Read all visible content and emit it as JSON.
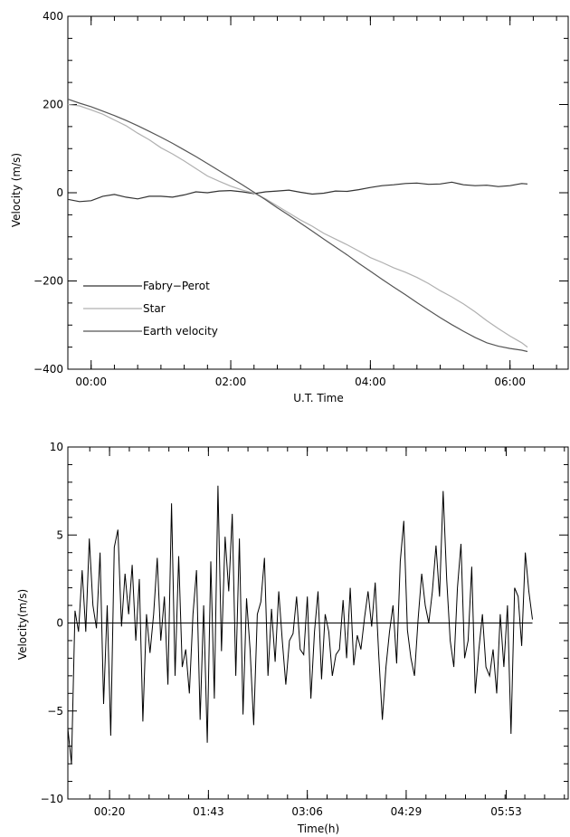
{
  "chart_data": [
    {
      "type": "line",
      "title": "",
      "xlabel": "U.T. Time",
      "ylabel": "Velocity (m/s)",
      "xlim": [
        "-00:20",
        "06:50"
      ],
      "ylim": [
        -400,
        400
      ],
      "x_tick_labels": [
        "00:00",
        "02:00",
        "04:00",
        "06:00"
      ],
      "y_tick_labels": [
        "400",
        "200",
        "0",
        "−200",
        "−400"
      ],
      "legend_position": "lower-left",
      "series": [
        {
          "name": "Fabry−Perot",
          "color": "#333333",
          "x": [
            "-00:20",
            "-00:10",
            "00:00",
            "00:10",
            "00:20",
            "00:30",
            "00:40",
            "00:50",
            "01:00",
            "01:10",
            "01:20",
            "01:30",
            "01:40",
            "01:50",
            "02:00",
            "02:10",
            "02:20",
            "02:30",
            "02:40",
            "02:50",
            "03:00",
            "03:10",
            "03:20",
            "03:30",
            "03:40",
            "03:50",
            "04:00",
            "04:10",
            "04:20",
            "04:30",
            "04:40",
            "04:50",
            "05:00",
            "05:10",
            "05:20",
            "05:30",
            "05:40",
            "05:50",
            "06:00",
            "06:10",
            "06:15"
          ],
          "y": [
            -15,
            -20,
            -18,
            -8,
            -4,
            -10,
            -14,
            -8,
            -8,
            -10,
            -5,
            2,
            0,
            4,
            5,
            2,
            -2,
            2,
            4,
            6,
            1,
            -3,
            -1,
            4,
            3,
            7,
            12,
            16,
            18,
            21,
            22,
            19,
            20,
            24,
            18,
            16,
            17,
            14,
            16,
            21,
            20
          ]
        },
        {
          "name": "Star",
          "color": "#b0b0b0",
          "x": [
            "-00:20",
            "-00:10",
            "00:00",
            "00:10",
            "00:20",
            "00:30",
            "00:40",
            "00:50",
            "01:00",
            "01:10",
            "01:20",
            "01:30",
            "01:40",
            "01:50",
            "02:00",
            "02:10",
            "02:20",
            "02:30",
            "02:40",
            "02:50",
            "03:00",
            "03:10",
            "03:20",
            "03:30",
            "03:40",
            "03:50",
            "04:00",
            "04:10",
            "04:20",
            "04:30",
            "04:40",
            "04:50",
            "05:00",
            "05:10",
            "05:20",
            "05:30",
            "05:40",
            "05:50",
            "06:00",
            "06:10",
            "06:15"
          ],
          "y": [
            200,
            197,
            188,
            178,
            165,
            152,
            135,
            120,
            102,
            88,
            72,
            55,
            38,
            26,
            15,
            6,
            -1,
            -14,
            -30,
            -46,
            -62,
            -76,
            -92,
            -105,
            -118,
            -132,
            -147,
            -158,
            -170,
            -180,
            -192,
            -206,
            -222,
            -236,
            -252,
            -270,
            -290,
            -308,
            -325,
            -340,
            -350
          ]
        },
        {
          "name": "Earth velocity",
          "color": "#555555",
          "x": [
            "-00:20",
            "-00:10",
            "00:00",
            "00:10",
            "00:20",
            "00:30",
            "00:40",
            "00:50",
            "01:00",
            "01:10",
            "01:20",
            "01:30",
            "01:40",
            "01:50",
            "02:00",
            "02:10",
            "02:20",
            "02:30",
            "02:40",
            "02:50",
            "03:00",
            "03:10",
            "03:20",
            "03:30",
            "03:40",
            "03:50",
            "04:00",
            "04:10",
            "04:20",
            "04:30",
            "04:40",
            "04:50",
            "05:00",
            "05:10",
            "05:20",
            "05:30",
            "05:40",
            "05:50",
            "06:00",
            "06:10",
            "06:15"
          ],
          "y": [
            212,
            203,
            195,
            185,
            175,
            164,
            152,
            139,
            126,
            112,
            97,
            82,
            66,
            50,
            34,
            18,
            1,
            -16,
            -34,
            -51,
            -69,
            -87,
            -105,
            -123,
            -141,
            -160,
            -178,
            -196,
            -214,
            -231,
            -249,
            -266,
            -283,
            -299,
            -314,
            -328,
            -340,
            -348,
            -353,
            -357,
            -360
          ]
        }
      ]
    },
    {
      "type": "line",
      "title": "",
      "xlabel": "Time(h)",
      "ylabel": "Velocity(m/s)",
      "xlim": [
        -0.25,
        6.75
      ],
      "ylim": [
        -10,
        10
      ],
      "x_tick_labels": [
        "00:20",
        "01:43",
        "03:06",
        "04:29",
        "05:53"
      ],
      "y_tick_labels": [
        "10",
        "5",
        "0",
        "−5",
        "−10"
      ],
      "zero_line": true,
      "series": [
        {
          "x": [
            -0.25,
            -0.2,
            -0.15,
            -0.1,
            -0.05,
            0.0,
            0.05,
            0.1,
            0.15,
            0.2,
            0.25,
            0.3,
            0.35,
            0.4,
            0.45,
            0.5,
            0.55,
            0.6,
            0.65,
            0.7,
            0.75,
            0.8,
            0.85,
            0.9,
            0.95,
            1.0,
            1.05,
            1.1,
            1.15,
            1.2,
            1.25,
            1.3,
            1.35,
            1.4,
            1.45,
            1.5,
            1.55,
            1.6,
            1.65,
            1.7,
            1.75,
            1.8,
            1.85,
            1.9,
            1.95,
            2.0,
            2.05,
            2.1,
            2.15,
            2.2,
            2.25,
            2.3,
            2.35,
            2.4,
            2.45,
            2.5,
            2.55,
            2.6,
            2.65,
            2.7,
            2.75,
            2.8,
            2.85,
            2.9,
            2.95,
            3.0,
            3.05,
            3.1,
            3.15,
            3.2,
            3.25,
            3.3,
            3.35,
            3.4,
            3.45,
            3.5,
            3.55,
            3.6,
            3.65,
            3.7,
            3.75,
            3.8,
            3.85,
            3.9,
            3.95,
            4.0,
            4.05,
            4.1,
            4.15,
            4.2,
            4.25,
            4.3,
            4.35,
            4.4,
            4.45,
            4.5,
            4.55,
            4.6,
            4.65,
            4.7,
            4.75,
            4.8,
            4.85,
            4.9,
            4.95,
            5.0,
            5.05,
            5.1,
            5.15,
            5.2,
            5.25,
            5.3,
            5.35,
            5.4,
            5.45,
            5.5,
            5.55,
            5.6,
            5.65,
            5.7,
            5.75,
            5.8,
            5.85,
            5.9,
            5.95,
            6.0,
            6.05,
            6.1,
            6.15,
            6.2,
            6.25
          ],
          "y": [
            -6.0,
            -8.0,
            0.7,
            -0.5,
            3.0,
            -0.5,
            4.8,
            1.0,
            -0.3,
            4.0,
            -4.6,
            1.0,
            -6.4,
            4.3,
            5.3,
            -0.2,
            2.8,
            0.5,
            3.3,
            -1.0,
            2.5,
            -5.6,
            0.5,
            -1.7,
            0.5,
            3.7,
            -1.0,
            1.5,
            -3.5,
            6.8,
            -3.0,
            3.8,
            -2.5,
            -1.5,
            -4.0,
            0.5,
            3.0,
            -5.5,
            1.0,
            -6.8,
            3.5,
            -4.3,
            7.8,
            -1.6,
            4.9,
            1.8,
            6.2,
            -3.0,
            4.8,
            -5.2,
            1.4,
            -1.5,
            -5.8,
            0.5,
            1.2,
            3.7,
            -3.0,
            0.8,
            -2.2,
            1.8,
            -1.0,
            -3.5,
            -1.0,
            -0.6,
            1.5,
            -1.5,
            -1.8,
            1.5,
            -4.3,
            -0.5,
            1.8,
            -3.2,
            0.5,
            -0.5,
            -3.0,
            -1.8,
            -1.5,
            1.3,
            -2.0,
            2.0,
            -2.4,
            -0.7,
            -1.5,
            0.3,
            1.8,
            -0.2,
            2.3,
            -1.8,
            -5.5,
            -2.5,
            -0.5,
            1.0,
            -2.3,
            3.5,
            5.8,
            -0.4,
            -2.0,
            -3.0,
            0.2,
            2.8,
            1.0,
            0.0,
            1.8,
            4.4,
            1.5,
            7.5,
            2.5,
            -1.0,
            -2.5,
            2.0,
            4.5,
            -2.0,
            -1.0,
            3.2,
            -4.0,
            -1.5,
            0.5,
            -2.5,
            -3.0,
            -1.5,
            -4.0,
            0.5,
            -2.5,
            1.0,
            -6.3,
            2.0,
            1.5,
            -1.3,
            4.0,
            1.8,
            0.2
          ]
        }
      ]
    }
  ]
}
